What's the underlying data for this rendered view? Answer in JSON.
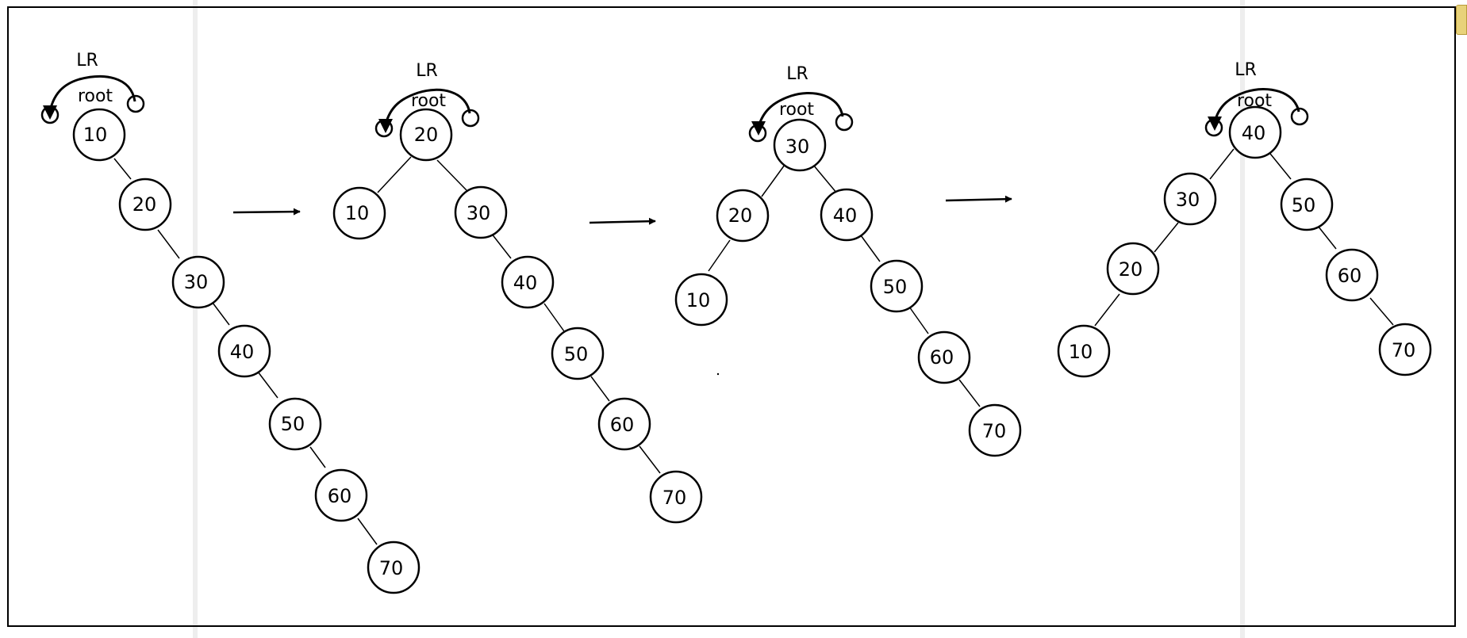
{
  "diagram": {
    "steps": [
      {
        "rotation_label": "LR",
        "root_label": "root",
        "nodes": [
          "10",
          "20",
          "30",
          "40",
          "50",
          "60",
          "70"
        ]
      },
      {
        "rotation_label": "LR",
        "root_label": "root",
        "nodes": [
          "20",
          "10",
          "30",
          "40",
          "50",
          "60",
          "70"
        ]
      },
      {
        "rotation_label": "LR",
        "root_label": "root",
        "nodes": [
          "30",
          "20",
          "40",
          "10",
          "50",
          "60",
          "70"
        ]
      },
      {
        "rotation_label": "LR",
        "root_label": "root",
        "nodes": [
          "40",
          "30",
          "50",
          "20",
          "60",
          "10",
          "70"
        ]
      }
    ]
  }
}
